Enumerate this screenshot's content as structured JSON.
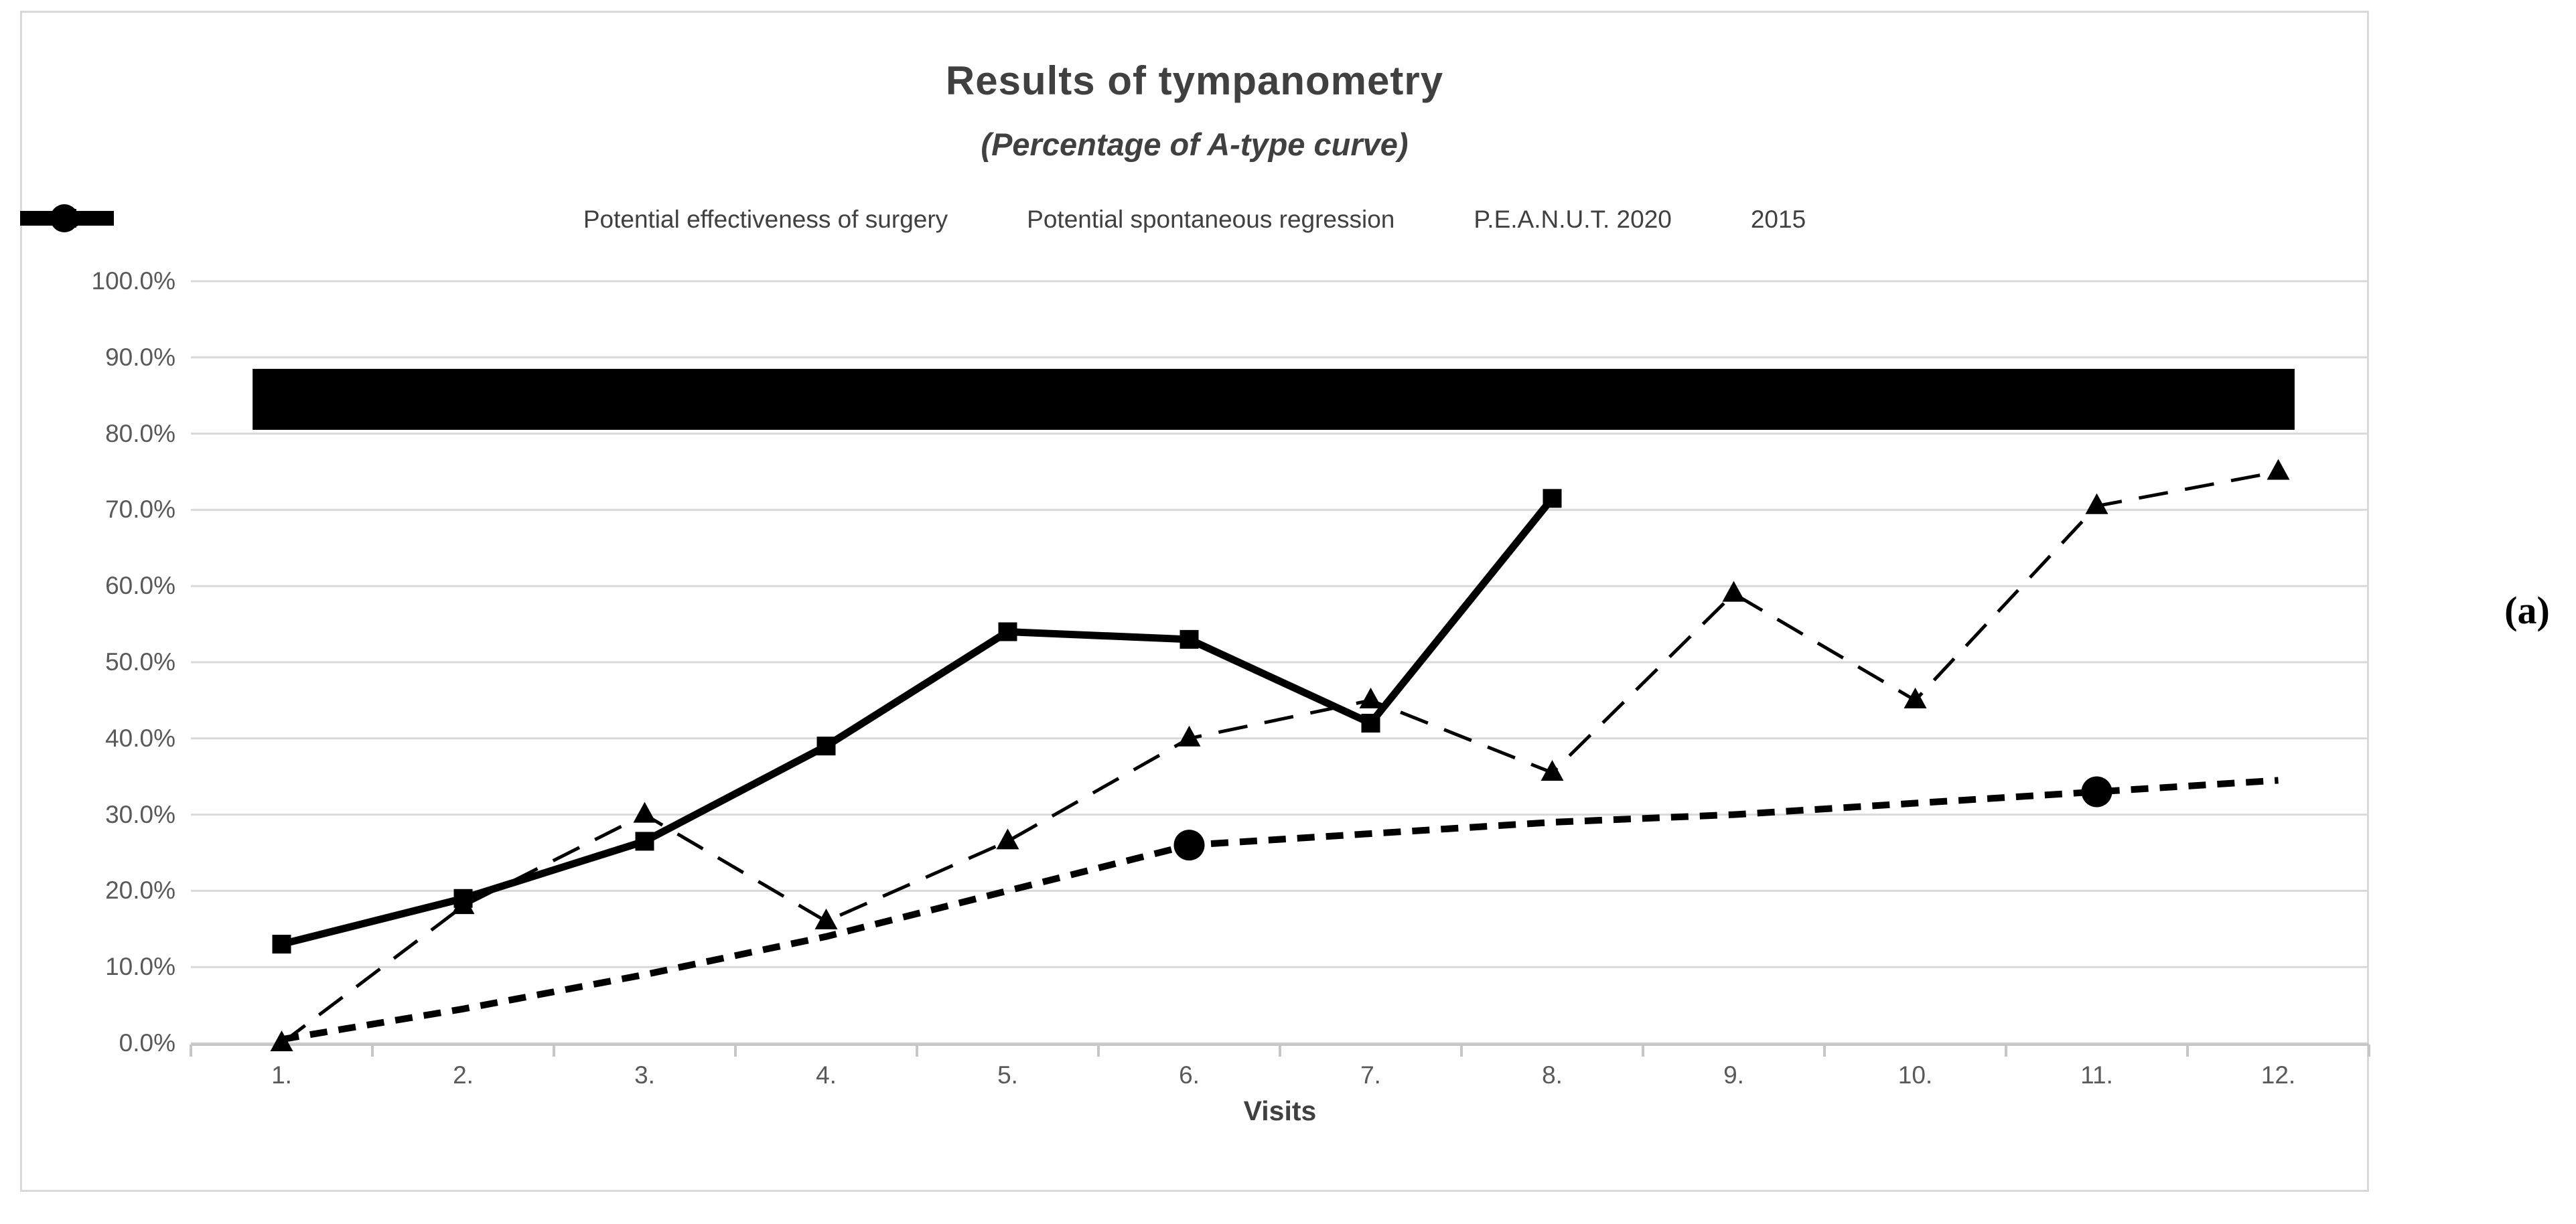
{
  "figure": {
    "annotation": "(a)"
  },
  "colors": {
    "series": "#000000",
    "gridline": "#d9d9d9",
    "axis": "#c6c6c6",
    "tick_text": "#595959",
    "title_text": "#404040"
  },
  "chart_data": {
    "type": "line",
    "title": "Results of tympanometry",
    "subtitle": "(Percentage of A-type curve)",
    "xlabel": "Visits",
    "ylabel": "",
    "categories": [
      "1.",
      "2.",
      "3.",
      "4.",
      "5.",
      "6.",
      "7.",
      "8.",
      "9.",
      "10.",
      "11.",
      "12."
    ],
    "y_axis": {
      "min": 0,
      "max": 100,
      "step": 10,
      "tick_labels": [
        "0.0%",
        "10.0%",
        "20.0%",
        "30.0%",
        "40.0%",
        "50.0%",
        "60.0%",
        "70.0%",
        "80.0%",
        "90.0%",
        "100.0%"
      ],
      "grid": true
    },
    "legend_position": "top",
    "series": [
      {
        "name": "Potential effectiveness of surgery",
        "type": "band",
        "y_range_percent": [
          80.5,
          88.5
        ],
        "x_span_categories": [
          0.34,
          11.59
        ]
      },
      {
        "name": "Potential spontaneous regression",
        "type": "line",
        "line_style": "bold-dashed",
        "marker": "circle",
        "marker_visits": [
          6,
          11
        ],
        "values": [
          0.5,
          4.5,
          9,
          14,
          20,
          26,
          27.5,
          29,
          30,
          31.5,
          33,
          34.5
        ]
      },
      {
        "name": "P.E.A.N.U.T. 2020",
        "type": "line",
        "line_style": "thick-solid",
        "marker": "square",
        "values": [
          13,
          19,
          26.5,
          39,
          54,
          53,
          42,
          71.5
        ]
      },
      {
        "name": "2015",
        "type": "line",
        "line_style": "thin-long-dash",
        "marker": "triangle",
        "values": [
          0,
          18,
          30,
          16,
          26.5,
          40,
          45,
          35.5,
          59,
          45,
          70.5,
          75
        ]
      }
    ]
  }
}
